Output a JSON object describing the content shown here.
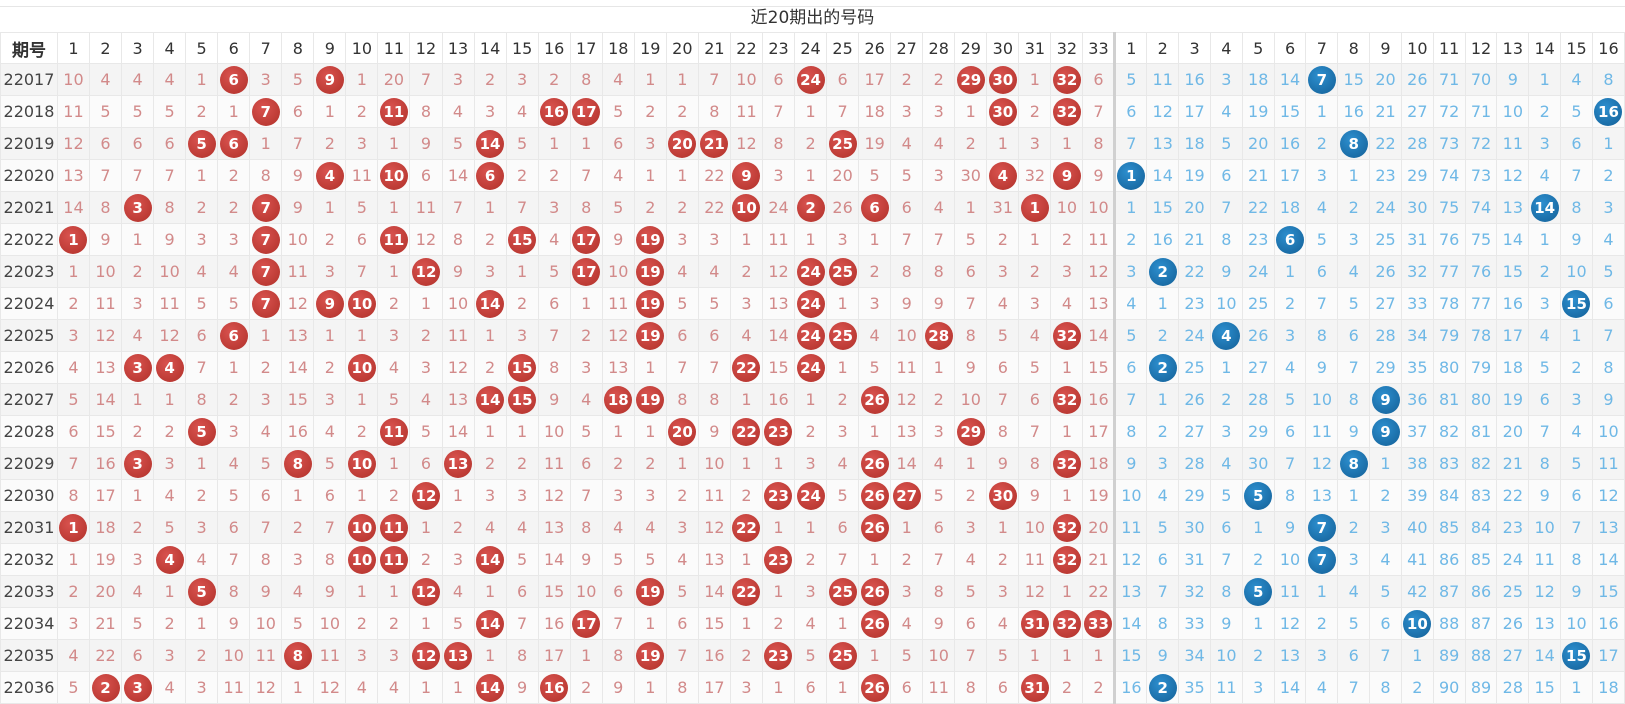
{
  "title": "近20期出的号码",
  "header": {
    "issue_label": "期号",
    "red_cols": [
      "1",
      "2",
      "3",
      "4",
      "5",
      "6",
      "7",
      "8",
      "9",
      "10",
      "11",
      "12",
      "13",
      "14",
      "15",
      "16",
      "17",
      "18",
      "19",
      "20",
      "21",
      "22",
      "23",
      "24",
      "25",
      "26",
      "27",
      "28",
      "29",
      "30",
      "31",
      "32",
      "33"
    ],
    "blue_cols": [
      "1",
      "2",
      "3",
      "4",
      "5",
      "6",
      "7",
      "8",
      "9",
      "10",
      "11",
      "12",
      "13",
      "14",
      "15",
      "16"
    ]
  },
  "colors": {
    "red_ball": "#c0392b",
    "blue_ball": "#1f77b4",
    "red_miss": "#d28a8a",
    "blue_miss": "#6fb8e6"
  },
  "rows": [
    {
      "issue": "22017",
      "red": [
        "10",
        "4",
        "4",
        "4",
        "1",
        "6",
        "3",
        "5",
        "9",
        "1",
        "20",
        "7",
        "3",
        "2",
        "3",
        "2",
        "8",
        "4",
        "1",
        "1",
        "7",
        "10",
        "6",
        "24",
        "6",
        "17",
        "2",
        "2",
        "29",
        "30",
        "1",
        "32",
        "6"
      ],
      "red_hits": [
        6,
        9,
        24,
        29,
        30,
        32
      ],
      "blue": [
        "5",
        "11",
        "16",
        "3",
        "18",
        "14",
        "7",
        "15",
        "20",
        "26",
        "71",
        "70",
        "9",
        "1",
        "4",
        "8"
      ],
      "blue_hit": 7
    },
    {
      "issue": "22018",
      "red": [
        "11",
        "5",
        "5",
        "5",
        "2",
        "1",
        "7",
        "6",
        "1",
        "2",
        "11",
        "8",
        "4",
        "3",
        "4",
        "16",
        "17",
        "5",
        "2",
        "2",
        "8",
        "11",
        "7",
        "1",
        "7",
        "18",
        "3",
        "3",
        "1",
        "30",
        "2",
        "32",
        "7"
      ],
      "red_hits": [
        7,
        11,
        16,
        17,
        30,
        32
      ],
      "blue": [
        "6",
        "12",
        "17",
        "4",
        "19",
        "15",
        "1",
        "16",
        "21",
        "27",
        "72",
        "71",
        "10",
        "2",
        "5",
        "16"
      ],
      "blue_hit": 16
    },
    {
      "issue": "22019",
      "red": [
        "12",
        "6",
        "6",
        "6",
        "5",
        "6",
        "1",
        "7",
        "2",
        "3",
        "1",
        "9",
        "5",
        "14",
        "5",
        "1",
        "1",
        "6",
        "3",
        "20",
        "21",
        "12",
        "8",
        "2",
        "25",
        "19",
        "4",
        "4",
        "2",
        "1",
        "3",
        "1",
        "8"
      ],
      "red_hits": [
        5,
        6,
        14,
        20,
        21,
        25
      ],
      "blue": [
        "7",
        "13",
        "18",
        "5",
        "20",
        "16",
        "2",
        "8",
        "22",
        "28",
        "73",
        "72",
        "11",
        "3",
        "6",
        "1"
      ],
      "blue_hit": 8
    },
    {
      "issue": "22020",
      "red": [
        "13",
        "7",
        "7",
        "7",
        "1",
        "2",
        "8",
        "9",
        "4",
        "11",
        "10",
        "6",
        "14",
        "6",
        "2",
        "2",
        "7",
        "4",
        "1",
        "1",
        "22",
        "9",
        "3",
        "1",
        "20",
        "5",
        "5",
        "3",
        "30",
        "4",
        "32",
        "9",
        "9"
      ],
      "red_hits": [
        9,
        11,
        14,
        22,
        30,
        32
      ],
      "blue": [
        "1",
        "14",
        "19",
        "6",
        "21",
        "17",
        "3",
        "1",
        "23",
        "29",
        "74",
        "73",
        "12",
        "4",
        "7",
        "2"
      ],
      "blue_hit": 1
    },
    {
      "issue": "22021",
      "red": [
        "14",
        "8",
        "3",
        "8",
        "2",
        "2",
        "7",
        "9",
        "1",
        "5",
        "1",
        "11",
        "7",
        "1",
        "7",
        "3",
        "8",
        "5",
        "2",
        "2",
        "22",
        "10",
        "24",
        "2",
        "26",
        "6",
        "6",
        "4",
        "1",
        "31",
        "1",
        "10",
        "10"
      ],
      "red_hits": [
        3,
        7,
        22,
        24,
        26,
        31
      ],
      "blue": [
        "1",
        "15",
        "20",
        "7",
        "22",
        "18",
        "4",
        "2",
        "24",
        "30",
        "75",
        "74",
        "13",
        "14",
        "8",
        "3"
      ],
      "blue_hit": 14
    },
    {
      "issue": "22022",
      "red": [
        "1",
        "9",
        "1",
        "9",
        "3",
        "3",
        "7",
        "10",
        "2",
        "6",
        "11",
        "12",
        "8",
        "2",
        "15",
        "4",
        "17",
        "9",
        "19",
        "3",
        "3",
        "1",
        "11",
        "1",
        "3",
        "1",
        "7",
        "7",
        "5",
        "2",
        "1",
        "2",
        "11"
      ],
      "red_hits": [
        1,
        7,
        11,
        15,
        17,
        19
      ],
      "blue": [
        "2",
        "16",
        "21",
        "8",
        "23",
        "6",
        "5",
        "3",
        "25",
        "31",
        "76",
        "75",
        "14",
        "1",
        "9",
        "4"
      ],
      "blue_hit": 6
    },
    {
      "issue": "22023",
      "red": [
        "1",
        "10",
        "2",
        "10",
        "4",
        "4",
        "7",
        "11",
        "3",
        "7",
        "1",
        "12",
        "9",
        "3",
        "1",
        "5",
        "17",
        "10",
        "19",
        "4",
        "4",
        "2",
        "12",
        "24",
        "25",
        "2",
        "8",
        "8",
        "6",
        "3",
        "2",
        "3",
        "12"
      ],
      "red_hits": [
        7,
        12,
        17,
        19,
        24,
        25
      ],
      "blue": [
        "3",
        "2",
        "22",
        "9",
        "24",
        "1",
        "6",
        "4",
        "26",
        "32",
        "77",
        "76",
        "15",
        "2",
        "10",
        "5"
      ],
      "blue_hit": 2
    },
    {
      "issue": "22024",
      "red": [
        "2",
        "11",
        "3",
        "11",
        "5",
        "5",
        "7",
        "12",
        "9",
        "10",
        "2",
        "1",
        "10",
        "14",
        "2",
        "6",
        "1",
        "11",
        "19",
        "5",
        "5",
        "3",
        "13",
        "24",
        "1",
        "3",
        "9",
        "9",
        "7",
        "4",
        "3",
        "4",
        "13"
      ],
      "red_hits": [
        7,
        9,
        10,
        14,
        19,
        24
      ],
      "blue": [
        "4",
        "1",
        "23",
        "10",
        "25",
        "2",
        "7",
        "5",
        "27",
        "33",
        "78",
        "77",
        "16",
        "3",
        "15",
        "6"
      ],
      "blue_hit": 15
    },
    {
      "issue": "22025",
      "red": [
        "3",
        "12",
        "4",
        "12",
        "6",
        "6",
        "1",
        "13",
        "1",
        "1",
        "3",
        "2",
        "11",
        "1",
        "3",
        "7",
        "2",
        "12",
        "19",
        "6",
        "6",
        "4",
        "14",
        "24",
        "25",
        "4",
        "10",
        "28",
        "8",
        "5",
        "4",
        "32",
        "14"
      ],
      "red_hits": [
        6,
        19,
        24,
        25,
        28,
        32
      ],
      "blue": [
        "5",
        "2",
        "24",
        "4",
        "26",
        "3",
        "8",
        "6",
        "28",
        "34",
        "79",
        "78",
        "17",
        "4",
        "1",
        "7"
      ],
      "blue_hit": 4
    },
    {
      "issue": "22026",
      "red": [
        "4",
        "13",
        "3",
        "4",
        "7",
        "1",
        "2",
        "14",
        "2",
        "10",
        "4",
        "3",
        "12",
        "2",
        "15",
        "8",
        "3",
        "13",
        "1",
        "7",
        "7",
        "22",
        "15",
        "24",
        "1",
        "5",
        "11",
        "1",
        "9",
        "6",
        "5",
        "1",
        "15"
      ],
      "red_hits": [
        3,
        4,
        10,
        15,
        22,
        24
      ],
      "blue": [
        "6",
        "2",
        "25",
        "1",
        "27",
        "4",
        "9",
        "7",
        "29",
        "35",
        "80",
        "79",
        "18",
        "5",
        "2",
        "8"
      ],
      "blue_hit": 2
    },
    {
      "issue": "22027",
      "red": [
        "5",
        "14",
        "1",
        "1",
        "8",
        "2",
        "3",
        "15",
        "3",
        "1",
        "5",
        "4",
        "13",
        "14",
        "15",
        "9",
        "4",
        "18",
        "19",
        "8",
        "8",
        "1",
        "16",
        "1",
        "2",
        "26",
        "12",
        "2",
        "10",
        "7",
        "6",
        "32",
        "16"
      ],
      "red_hits": [
        14,
        15,
        18,
        19,
        26,
        32
      ],
      "blue": [
        "7",
        "1",
        "26",
        "2",
        "28",
        "5",
        "10",
        "8",
        "9",
        "36",
        "81",
        "80",
        "19",
        "6",
        "3",
        "9"
      ],
      "blue_hit": 9
    },
    {
      "issue": "22028",
      "red": [
        "6",
        "15",
        "2",
        "2",
        "5",
        "3",
        "4",
        "16",
        "4",
        "2",
        "11",
        "5",
        "14",
        "1",
        "1",
        "10",
        "5",
        "1",
        "1",
        "20",
        "9",
        "22",
        "23",
        "2",
        "3",
        "1",
        "13",
        "3",
        "29",
        "8",
        "7",
        "1",
        "17"
      ],
      "red_hits": [
        5,
        11,
        20,
        22,
        23,
        29
      ],
      "blue": [
        "8",
        "2",
        "27",
        "3",
        "29",
        "6",
        "11",
        "9",
        "9",
        "37",
        "82",
        "81",
        "20",
        "7",
        "4",
        "10"
      ],
      "blue_hit": 9
    },
    {
      "issue": "22029",
      "red": [
        "7",
        "16",
        "3",
        "3",
        "1",
        "4",
        "5",
        "8",
        "5",
        "10",
        "1",
        "6",
        "13",
        "2",
        "2",
        "11",
        "6",
        "2",
        "2",
        "1",
        "10",
        "1",
        "1",
        "3",
        "4",
        "26",
        "14",
        "4",
        "1",
        "9",
        "8",
        "32",
        "18"
      ],
      "red_hits": [
        3,
        8,
        10,
        13,
        26,
        32
      ],
      "blue": [
        "9",
        "3",
        "28",
        "4",
        "30",
        "7",
        "12",
        "8",
        "1",
        "38",
        "83",
        "82",
        "21",
        "8",
        "5",
        "11"
      ],
      "blue_hit": 8
    },
    {
      "issue": "22030",
      "red": [
        "8",
        "17",
        "1",
        "4",
        "2",
        "5",
        "6",
        "1",
        "6",
        "1",
        "2",
        "12",
        "1",
        "3",
        "3",
        "12",
        "7",
        "3",
        "3",
        "2",
        "11",
        "2",
        "23",
        "24",
        "5",
        "26",
        "27",
        "5",
        "2",
        "30",
        "9",
        "1",
        "19"
      ],
      "red_hits": [
        12,
        23,
        24,
        26,
        27,
        30
      ],
      "blue": [
        "10",
        "4",
        "29",
        "5",
        "5",
        "8",
        "13",
        "1",
        "2",
        "39",
        "84",
        "83",
        "22",
        "9",
        "6",
        "12"
      ],
      "blue_hit": 5
    },
    {
      "issue": "22031",
      "red": [
        "1",
        "18",
        "2",
        "5",
        "3",
        "6",
        "7",
        "2",
        "7",
        "10",
        "11",
        "1",
        "2",
        "4",
        "4",
        "13",
        "8",
        "4",
        "4",
        "3",
        "12",
        "22",
        "1",
        "1",
        "6",
        "26",
        "1",
        "6",
        "3",
        "1",
        "10",
        "32",
        "20"
      ],
      "red_hits": [
        1,
        10,
        11,
        22,
        26,
        32
      ],
      "blue": [
        "11",
        "5",
        "30",
        "6",
        "1",
        "9",
        "7",
        "2",
        "3",
        "40",
        "85",
        "84",
        "23",
        "10",
        "7",
        "13"
      ],
      "blue_hit": 7
    },
    {
      "issue": "22032",
      "red": [
        "1",
        "19",
        "3",
        "4",
        "4",
        "7",
        "8",
        "3",
        "8",
        "10",
        "11",
        "2",
        "3",
        "14",
        "5",
        "14",
        "9",
        "5",
        "5",
        "4",
        "13",
        "1",
        "23",
        "2",
        "7",
        "1",
        "2",
        "7",
        "4",
        "2",
        "11",
        "32",
        "21"
      ],
      "red_hits": [
        4,
        10,
        11,
        14,
        23,
        32
      ],
      "blue": [
        "12",
        "6",
        "31",
        "7",
        "2",
        "10",
        "7",
        "3",
        "4",
        "41",
        "86",
        "85",
        "24",
        "11",
        "8",
        "14"
      ],
      "blue_hit": 7
    },
    {
      "issue": "22033",
      "red": [
        "2",
        "20",
        "4",
        "1",
        "5",
        "8",
        "9",
        "4",
        "9",
        "1",
        "1",
        "12",
        "4",
        "1",
        "6",
        "15",
        "10",
        "6",
        "19",
        "5",
        "14",
        "22",
        "1",
        "3",
        "25",
        "26",
        "3",
        "8",
        "5",
        "3",
        "12",
        "1",
        "22"
      ],
      "red_hits": [
        5,
        12,
        19,
        22,
        25,
        26
      ],
      "blue": [
        "13",
        "7",
        "32",
        "8",
        "5",
        "11",
        "1",
        "4",
        "5",
        "42",
        "87",
        "86",
        "25",
        "12",
        "9",
        "15"
      ],
      "blue_hit": 5
    },
    {
      "issue": "22034",
      "red": [
        "3",
        "21",
        "5",
        "2",
        "1",
        "9",
        "10",
        "5",
        "10",
        "2",
        "2",
        "1",
        "5",
        "14",
        "7",
        "16",
        "17",
        "7",
        "1",
        "6",
        "15",
        "1",
        "2",
        "4",
        "1",
        "26",
        "4",
        "9",
        "6",
        "4",
        "31",
        "32",
        "33"
      ],
      "red_hits": [
        14,
        17,
        26,
        31,
        32,
        33
      ],
      "blue": [
        "14",
        "8",
        "33",
        "9",
        "1",
        "12",
        "2",
        "5",
        "6",
        "10",
        "88",
        "87",
        "26",
        "13",
        "10",
        "16"
      ],
      "blue_hit": 10
    },
    {
      "issue": "22035",
      "red": [
        "4",
        "22",
        "6",
        "3",
        "2",
        "10",
        "11",
        "8",
        "11",
        "3",
        "3",
        "12",
        "13",
        "1",
        "8",
        "17",
        "1",
        "8",
        "19",
        "7",
        "16",
        "2",
        "23",
        "5",
        "25",
        "1",
        "5",
        "10",
        "7",
        "5",
        "1",
        "1",
        "1"
      ],
      "red_hits": [
        8,
        12,
        13,
        19,
        23,
        25
      ],
      "blue": [
        "15",
        "9",
        "34",
        "10",
        "2",
        "13",
        "3",
        "6",
        "7",
        "1",
        "89",
        "88",
        "27",
        "14",
        "15",
        "17"
      ],
      "blue_hit": 15
    },
    {
      "issue": "22036",
      "red": [
        "5",
        "2",
        "3",
        "4",
        "3",
        "11",
        "12",
        "1",
        "12",
        "4",
        "4",
        "1",
        "1",
        "14",
        "9",
        "16",
        "2",
        "9",
        "1",
        "8",
        "17",
        "3",
        "1",
        "6",
        "1",
        "26",
        "6",
        "11",
        "8",
        "6",
        "31",
        "2",
        "2"
      ],
      "red_hits": [
        2,
        3,
        14,
        16,
        26,
        31
      ],
      "blue": [
        "16",
        "2",
        "35",
        "11",
        "3",
        "14",
        "4",
        "7",
        "8",
        "2",
        "90",
        "89",
        "28",
        "15",
        "1",
        "18"
      ],
      "blue_hit": 2
    }
  ]
}
